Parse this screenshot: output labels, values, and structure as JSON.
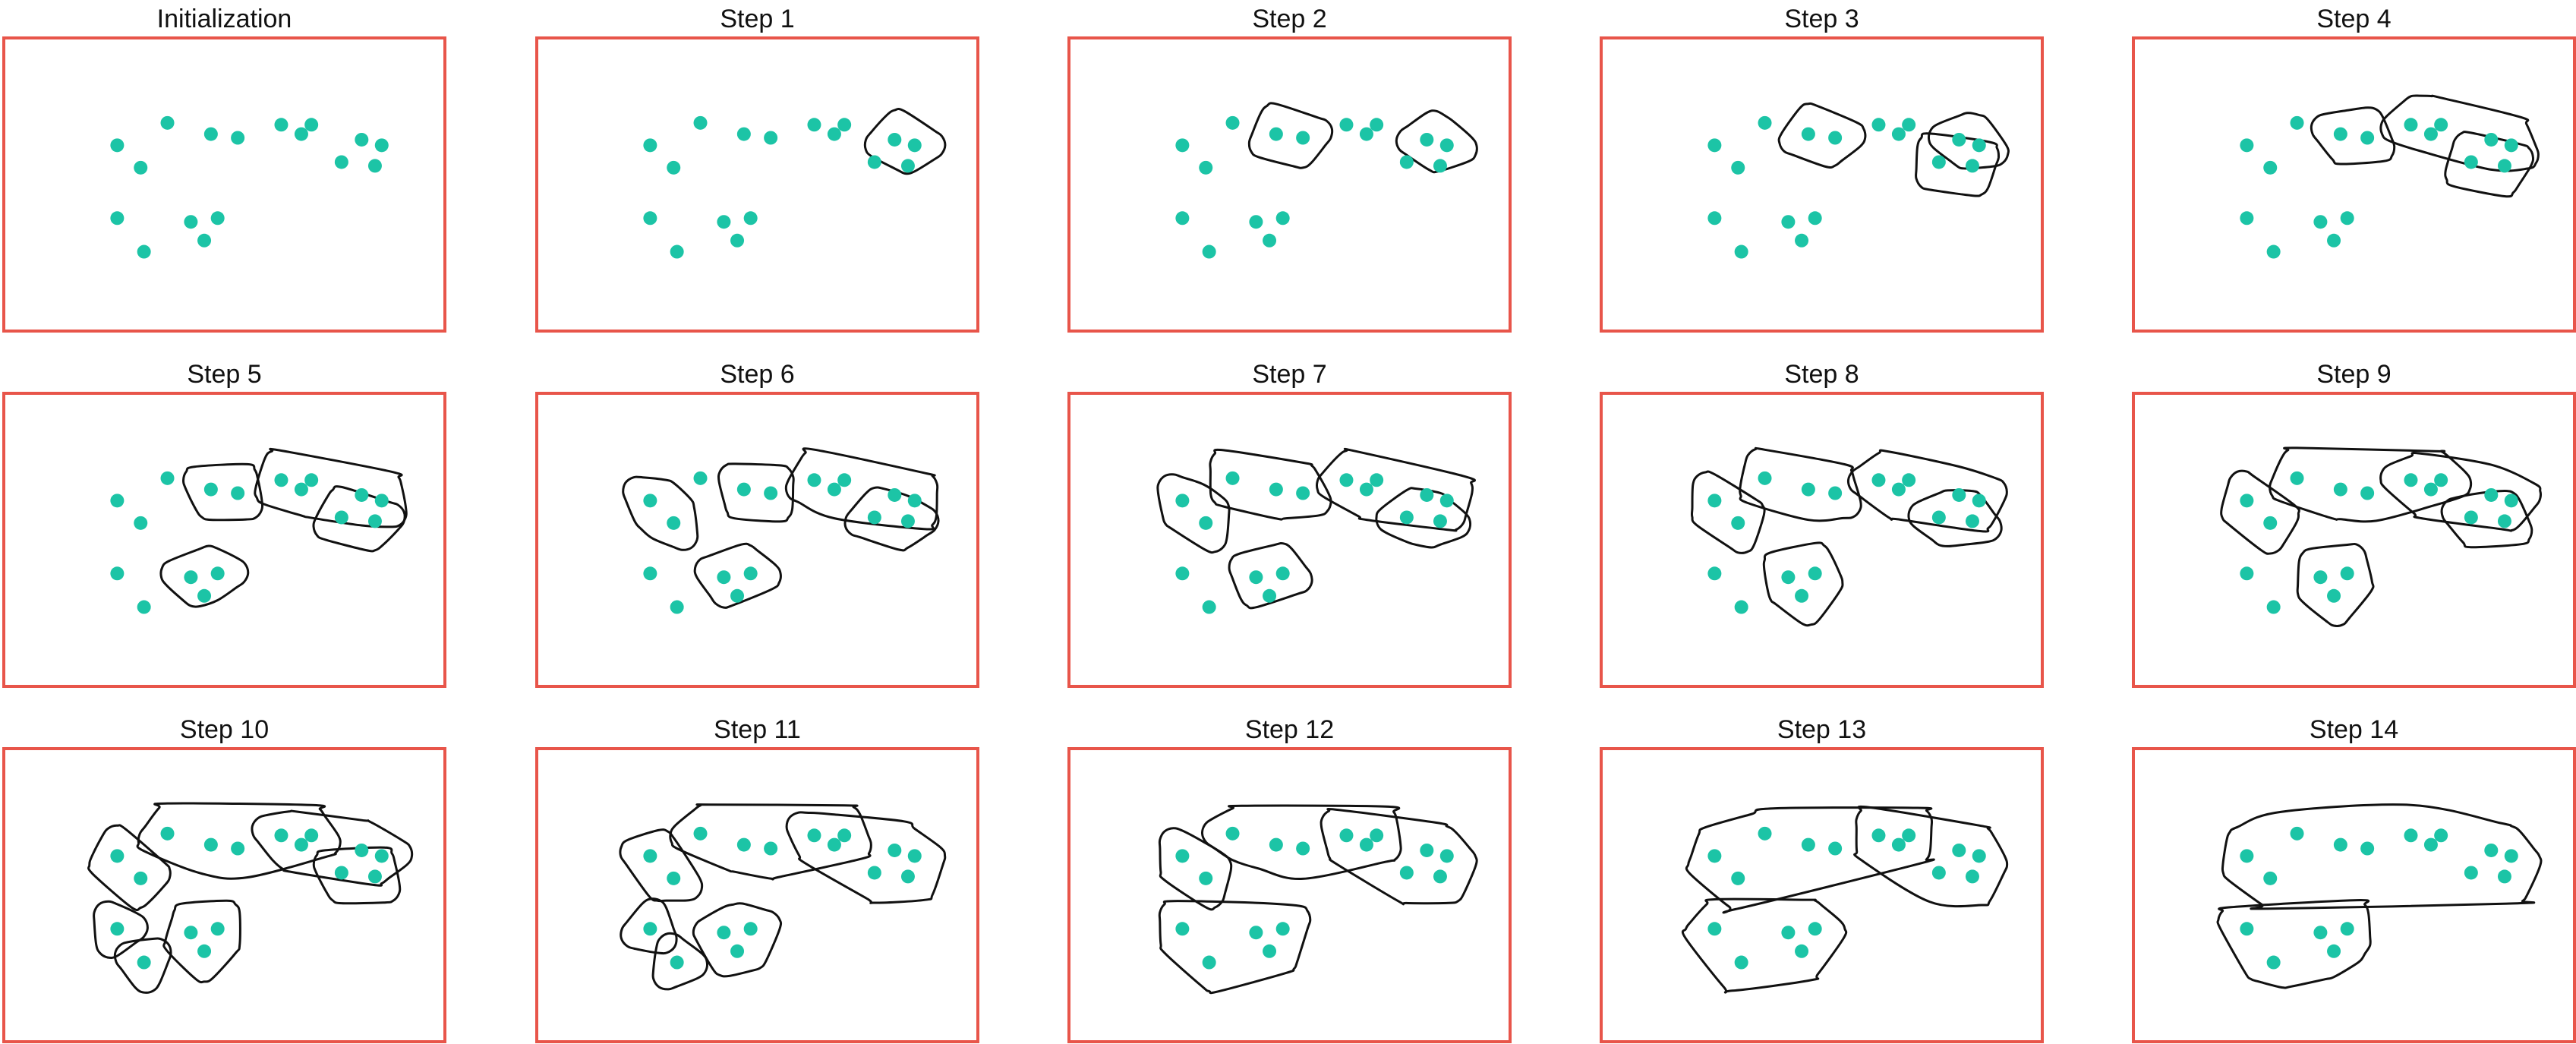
{
  "colors": {
    "frame": "#e8554a",
    "point": "#1cc4a6",
    "outline": "#111111",
    "title": "#111111"
  },
  "points": [
    [
      0.33,
      0.17
    ],
    [
      0.46,
      0.23
    ],
    [
      0.54,
      0.25
    ],
    [
      0.73,
      0.23
    ],
    [
      0.67,
      0.18
    ],
    [
      0.76,
      0.18
    ],
    [
      0.91,
      0.26
    ],
    [
      0.97,
      0.29
    ],
    [
      0.85,
      0.38
    ],
    [
      0.95,
      0.4
    ],
    [
      0.18,
      0.29
    ],
    [
      0.25,
      0.41
    ],
    [
      0.48,
      0.68
    ],
    [
      0.4,
      0.7
    ],
    [
      0.18,
      0.68
    ],
    [
      0.26,
      0.86
    ],
    [
      0.44,
      0.8
    ]
  ],
  "panels": [
    {
      "title": "Initialization",
      "clusters": []
    },
    {
      "title": "Step 1",
      "clusters": [
        [
          6,
          7
        ]
      ]
    },
    {
      "title": "Step 2",
      "clusters": [
        [
          6,
          7
        ],
        [
          1,
          2
        ]
      ]
    },
    {
      "title": "Step 3",
      "clusters": [
        [
          6,
          7
        ],
        [
          1,
          2
        ],
        [
          8,
          9
        ]
      ]
    },
    {
      "title": "Step 4",
      "clusters": [
        [
          1,
          2
        ],
        [
          4,
          5,
          6,
          7
        ],
        [
          8,
          9
        ]
      ]
    },
    {
      "title": "Step 5",
      "clusters": [
        [
          1,
          2
        ],
        [
          3,
          4,
          6,
          7
        ],
        [
          8,
          9
        ],
        [
          12,
          13
        ]
      ]
    },
    {
      "title": "Step 6",
      "clusters": [
        [
          1,
          2
        ],
        [
          3,
          4,
          6,
          7
        ],
        [
          8,
          9
        ],
        [
          12,
          13
        ],
        [
          10,
          11
        ]
      ]
    },
    {
      "title": "Step 7",
      "clusters": [
        [
          0,
          1,
          2
        ],
        [
          3,
          4,
          6,
          7
        ],
        [
          8,
          9
        ],
        [
          12,
          13
        ],
        [
          10,
          11
        ]
      ]
    },
    {
      "title": "Step 8",
      "clusters": [
        [
          0,
          1,
          2
        ],
        [
          3,
          4,
          6,
          7
        ],
        [
          8,
          9
        ],
        [
          12,
          13,
          16
        ],
        [
          10,
          11
        ]
      ]
    },
    {
      "title": "Step 9",
      "clusters": [
        [
          0,
          1,
          2,
          5
        ],
        [
          3,
          4,
          6,
          7
        ],
        [
          8,
          9
        ],
        [
          12,
          13,
          16
        ],
        [
          10,
          11
        ]
      ]
    },
    {
      "title": "Step 10",
      "clusters": [
        [
          0,
          1,
          2,
          5
        ],
        [
          3,
          4,
          6,
          7
        ],
        [
          8,
          9
        ],
        [
          12,
          13,
          16
        ],
        [
          10,
          11
        ],
        [
          14
        ],
        [
          15
        ]
      ]
    },
    {
      "title": "Step 11",
      "clusters": [
        [
          0,
          1,
          2,
          5
        ],
        [
          3,
          4,
          6,
          7,
          8,
          9
        ],
        [
          12,
          13,
          16
        ],
        [
          10,
          11
        ],
        [
          14
        ],
        [
          15
        ]
      ]
    },
    {
      "title": "Step 12",
      "clusters": [
        [
          0,
          1,
          2,
          5
        ],
        [
          3,
          4,
          6,
          7,
          8,
          9
        ],
        [
          10,
          11
        ],
        [
          12,
          13,
          14,
          15,
          16
        ]
      ]
    },
    {
      "title": "Step 13",
      "clusters": [
        [
          0,
          1,
          2,
          5,
          10,
          11
        ],
        [
          3,
          4,
          6,
          7,
          8,
          9
        ],
        [
          12,
          13,
          14,
          15,
          16
        ]
      ]
    },
    {
      "title": "Step 14",
      "clusters": [
        [
          0,
          1,
          2,
          3,
          4,
          5,
          6,
          7,
          8,
          9,
          10,
          11
        ],
        [
          12,
          13,
          14,
          15,
          16
        ]
      ]
    }
  ]
}
